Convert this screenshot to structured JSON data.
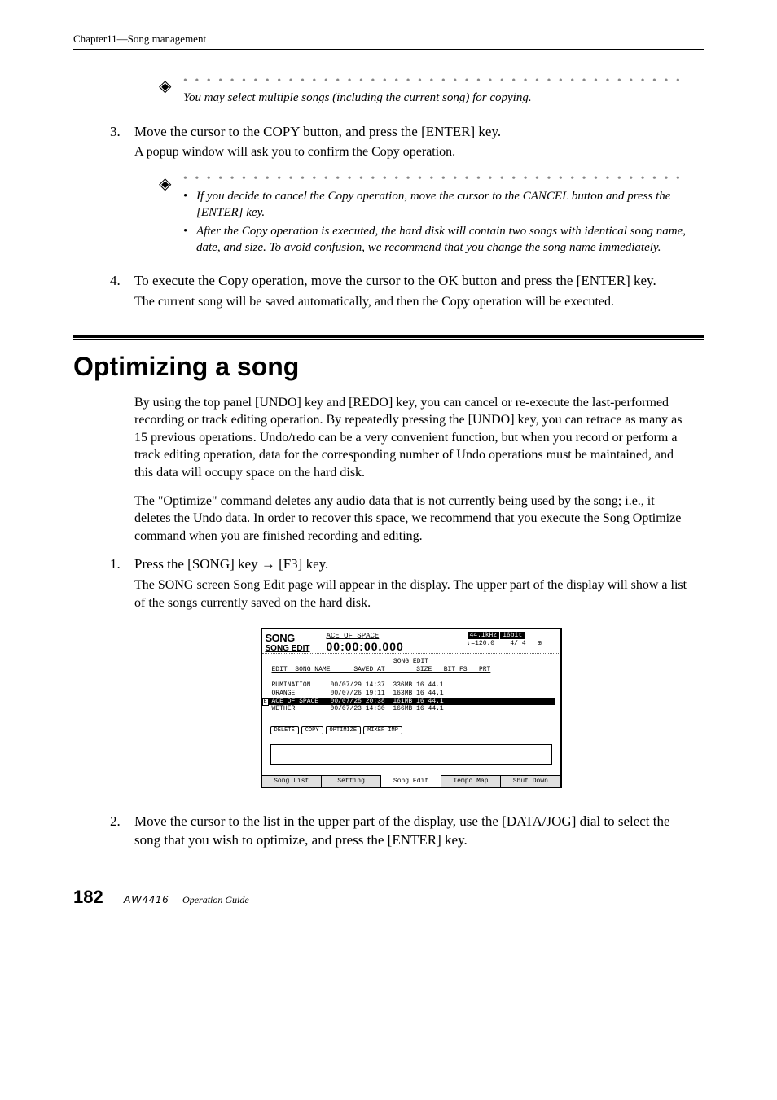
{
  "chapter_header": "Chapter11—Song management",
  "tip1": {
    "text": "You may select multiple songs (including the current song) for copying."
  },
  "step3": {
    "num": "3.",
    "lead": "Move the cursor to the COPY button, and press the [ENTER] key.",
    "body": "A popup window will ask you to confirm the Copy operation."
  },
  "tip2": {
    "bullet1": "If you decide to cancel the Copy operation, move the cursor to the CANCEL button and press the [ENTER] key.",
    "bullet2": "After the Copy operation is executed, the hard disk will contain two songs with identical song name, date, and size. To avoid confusion, we recommend that you change the song name immediately."
  },
  "step4": {
    "num": "4.",
    "lead": "To execute the Copy operation, move the cursor to the OK button and press the [ENTER] key.",
    "body": "The current song will be saved automatically, and then the Copy operation will be executed."
  },
  "section_title": "Optimizing a song",
  "para1": "By using the top panel [UNDO] key and [REDO] key, you can cancel or re-execute the last-performed recording or track editing operation. By repeatedly pressing the [UNDO] key, you can retrace as many as 15 previous operations. Undo/redo can be a very convenient function, but when you record or perform a track editing operation, data for the corresponding number of Undo operations must be maintained, and this data will occupy space on the hard disk.",
  "para2": "The \"Optimize\" command deletes any audio data that is not currently being used by the song; i.e., it deletes the Undo data. In order to recover this space, we recommend that you execute the Song Optimize command when you are finished recording and editing.",
  "opt_step1": {
    "num": "1.",
    "lead": "Press the [SONG] key → [F3] key.",
    "body": "The SONG screen Song Edit page will appear in the display. The upper part of the display will show a list of the songs currently saved on the hard disk."
  },
  "screenshot": {
    "title1": "SONG",
    "title2": "SONG EDIT",
    "songname_top": "ACE OF SPACE",
    "clock": "00:00:00.000",
    "badge1": "44.1kHz",
    "badge2": "16bit",
    "tempo_label": "♩=120.0",
    "timesig": "4/ 4",
    "rec_icon": "⊞",
    "section_label": "SONG EDIT",
    "header_row": "EDIT  SONG NAME      SAVED AT        SIZE   BIT FS   PRT",
    "rows": [
      {
        "name": "RUMINATION",
        "saved": "00/07/29 14:37",
        "size": "336MB",
        "bit": "16",
        "fs": "44.1",
        "sel": false
      },
      {
        "name": "ORANGE",
        "saved": "00/07/26 19:11",
        "size": "163MB",
        "bit": "16",
        "fs": "44.1",
        "sel": false
      },
      {
        "name": "ACE OF SPACE",
        "saved": "00/07/25 20:38",
        "size": "161MB",
        "bit": "16",
        "fs": "44.1",
        "sel": true
      },
      {
        "name": "WETHER",
        "saved": "00/07/23 14:30",
        "size": "166MB",
        "bit": "16",
        "fs": "44.1",
        "sel": false
      }
    ],
    "buttons": [
      "DELETE",
      "COPY",
      "OPTIMIZE",
      "MIXER IMP"
    ],
    "tabs": [
      "Song List",
      "Setting",
      "Song Edit",
      "Tempo Map",
      "Shut Down"
    ],
    "active_tab": 2
  },
  "opt_step2": {
    "num": "2.",
    "lead": "Move the cursor to the list in the upper part of the display, use the [DATA/JOG] dial to select the song that you wish to optimize, and press the [ENTER] key."
  },
  "footer": {
    "page": "182",
    "logo": "AW4416",
    "text": "— Operation Guide"
  },
  "dots_fill": "• • • • • • • • • • • • • • • • • • • • • • • • • • • • • • • • • • • • • • • • • • • • • • •"
}
